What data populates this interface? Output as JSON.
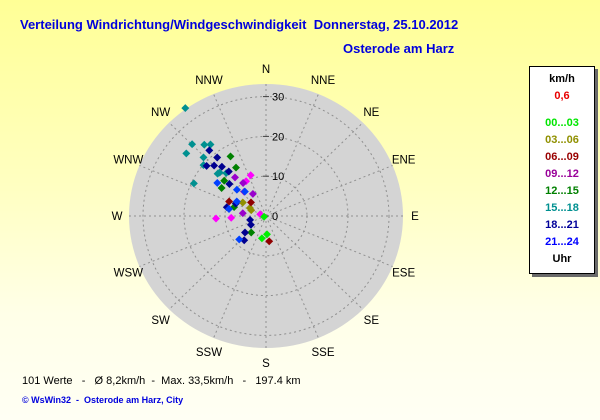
{
  "title": "Verteilung Windrichtung/Windgeschwindigkeit  Donnerstag, 25.10.2012",
  "subtitle": "Osterode am Harz",
  "legend": {
    "header": "km/h",
    "header_color": "#000000",
    "calm_value": "0,6",
    "calm_color": "#e80000",
    "entries": [
      {
        "label": "00...03",
        "color": "#00e600"
      },
      {
        "label": "03...06",
        "color": "#909000"
      },
      {
        "label": "06...09",
        "color": "#990000"
      },
      {
        "label": "09...12",
        "color": "#990099"
      },
      {
        "label": "12...15",
        "color": "#008000"
      },
      {
        "label": "15...18",
        "color": "#009090"
      },
      {
        "label": "18...21",
        "color": "#000099"
      },
      {
        "label": "21...24",
        "color": "#0000ff"
      }
    ],
    "footer": "Uhr",
    "footer_color": "#000000"
  },
  "footer": {
    "stats": "101 Werte   -   Ø 8,2km/h  -  Max. 33,5km/h   -   197.4 km",
    "copyright": "© WsWin32  -  Osterode am Harz, City"
  },
  "chart_data": {
    "type": "scatter_polar",
    "title": "Wind direction / wind speed distribution",
    "unit": "km/h",
    "direction_labels": [
      "N",
      "NNE",
      "NE",
      "ENE",
      "E",
      "ESE",
      "SE",
      "SSE",
      "S",
      "SSW",
      "SW",
      "WSW",
      "W",
      "WNW",
      "NW",
      "NNW"
    ],
    "ring_ticks": [
      0,
      10,
      20,
      30
    ],
    "rmax": 34,
    "grid": "dashed",
    "disc_color": "#d4d4d4",
    "grid_color": "#8f8f8f",
    "values_count": 101,
    "mean_kmh": 8.2,
    "max_kmh": 33.5,
    "distance_km": 197.4,
    "series": [
      {
        "name": "03...06",
        "color": "#909000",
        "points": [
          [
            301,
            6.6
          ],
          [
            297,
            4.4
          ],
          [
            292,
            3.9
          ]
        ]
      },
      {
        "name": "06...09",
        "color": "#900000",
        "points": [
          [
            292,
            9.7
          ],
          [
            313,
            5.0
          ],
          [
            173,
            6.4
          ]
        ]
      },
      {
        "name": "09...12",
        "color": "#ff00ff",
        "points": [
          [
            340,
            10.9
          ],
          [
            331,
            10.0
          ],
          [
            267,
            12.2
          ],
          [
            267,
            8.5
          ],
          [
            288,
            1.5
          ],
          [
            326,
            10.0,
            "#9900cc"
          ],
          [
            319,
            8.1,
            "#9900cc"
          ],
          [
            330,
            6.4,
            "#9900cc"
          ],
          [
            277,
            5.7,
            "#9900cc"
          ],
          [
            322,
            12.3,
            "#9900cc"
          ]
        ]
      },
      {
        "name": "12...15",
        "color": "#008000",
        "points": [
          [
            330,
            17.3
          ],
          [
            329,
            14.2
          ],
          [
            303,
            12.9
          ],
          [
            286,
            8.1
          ],
          [
            221,
            5.5
          ],
          [
            311,
            13.5
          ]
        ]
      },
      {
        "name": "15...18",
        "color": "#009090",
        "points": [
          [
            324,
            33.5
          ],
          [
            315,
            25.5
          ],
          [
            320,
            23.4
          ],
          [
            323,
            22.5
          ],
          [
            309,
            25.0
          ],
          [
            314,
            21.2
          ],
          [
            310,
            19.9
          ],
          [
            312,
            15.9
          ],
          [
            314,
            15.7
          ],
          [
            318,
            14.5
          ],
          [
            295,
            19.4
          ]
        ]
      },
      {
        "name": "18...21",
        "color": "#000090",
        "points": [
          [
            320,
            21.5
          ],
          [
            321,
            18.9
          ],
          [
            311,
            19.2
          ],
          [
            315,
            17.9
          ],
          [
            319,
            16.4
          ],
          [
            321,
            14.4
          ],
          [
            312,
            12.0
          ],
          [
            283,
            9.8
          ],
          [
            293,
            8.0
          ],
          [
            256,
            4.0
          ],
          [
            239,
            4.3
          ],
          [
            231,
            6.6
          ],
          [
            221,
            8.1
          ]
        ]
      },
      {
        "name": "21...24",
        "color": "#0040ff",
        "points": [
          [
            305,
            14.5
          ],
          [
            313,
            9.7
          ],
          [
            297,
            8.0
          ],
          [
            281,
            9.2
          ],
          [
            228,
            8.8
          ],
          [
            320,
            8.0
          ]
        ]
      },
      {
        "name": "00...03",
        "color": "#00f000",
        "points": [
          [
            190,
            5.7
          ],
          [
            177,
            4.6
          ],
          [
            250,
            0.5
          ]
        ]
      }
    ]
  }
}
